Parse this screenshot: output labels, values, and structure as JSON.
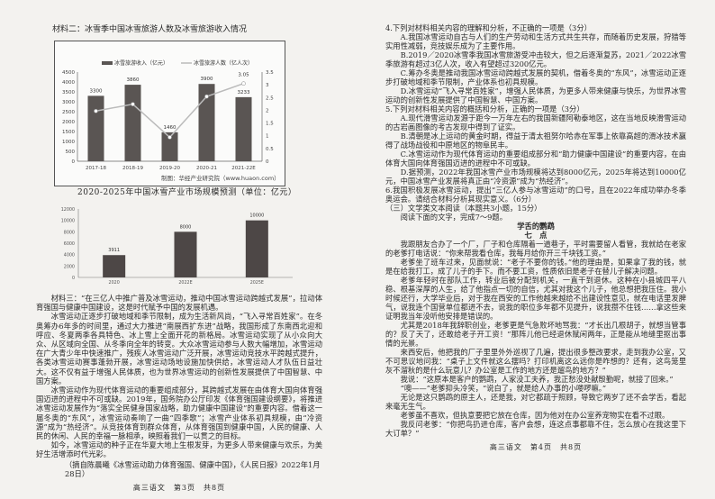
{
  "left_page": {
    "material2_title": "材料二：冰雪季中国冰雪旅游人数及冰雪旅游收入情况",
    "chart2_title": "2020-2025年中国冰雪产业市场规模预测（单位：亿元）",
    "material3": [
      "材料三：“在三亿人中推广普及冰雪运动，推动中国冰雪运动跨越式发展”，拉动体育强国与健康中国建设，这是时代赋予中国的发展机遇。",
      "冰雪运动正逐步打破地域和季节限制，成为生活新风尚，“飞入寻常百姓家”。在冬奥筹办6年多的时间里，通过大力推进“南展西扩东进”战略，我国形成了东南西北迎和呼应、冬夏两季各具特色、冰上雪上全面开花的新格局。冰雪运动实现了从小众向大众、从区域向全国、从冬季向全年的转变。大众冰雪运动参与人数大幅增加，冰雪运动在广大青少年中快速推广，残疾人冰雪运动广泛开展，冰雪运动竞技水平跨越式提升，各类冰雪运动赛事蓬勃开展，冰雪运动场地设施加快供给，冰雪运动人才队伍日益壮大。这不仅有益于增强人民体质，也为世界冰雪运动的创新性发展提供了中国智慧、中国方案。",
      "冰雪运动作为现代体育运动的重要组成部分，其跨越式发展在由体育大国向体育强国迈进的进程中不可或缺。2019年，国务院办公厅印发《体育强国建设纲要》，将推进冰雪运动发展作为“落实全民健身国家战略，助力健康中国建设”的重要内容。借着这一届冬奥的“东风”，冰雪运动奏响了一曲“四季歌”；冰雪产业体系初具规模，由“冷资源”成为“热经济”。从竞技体育到群众体育，从体育强国到健康中国，人民的健康、人民的休闲、人民的幸福一脉相承，映照着我们一以贯之的目标。",
      "如今，冰雪运动的种子正在华夏大地上生根发芽，为更多人带来健康与欢乐，为美好生活增添时代光彩。"
    ],
    "source": "（摘自陈晨曦《冰雪运动助力体育强国、健康中国》，《人民日报》2022年1月28日）",
    "footer": "高三语文　第3页　共8页"
  },
  "right_page": {
    "paragraphs": [
      {
        "kind": "q",
        "text": "4.下列对材料相关内容的理解和分析，不正确的一项是（3分）"
      },
      {
        "kind": "p",
        "text": "A.我国冰雪运动自古与人们的生产劳动和生活方式共生共存，而随着历史发展，狩猎等实用性减弱，竞技娱乐成为了主要作用。"
      },
      {
        "kind": "p",
        "text": "B.2019／2020冰雪季我国冰雪旅游受冲击较大，但之后逐渐复苏，2021／2022冰雪季旅游有超过3亿人次，收入有望超过3200亿元。"
      },
      {
        "kind": "p",
        "text": "C.筹办冬奥是推动我国冰雪运动跨越式发展的契机，借着冬奥的“东风”，冰雪运动正逐步打破地域和季节限制，产业体系也初具规模。"
      },
      {
        "kind": "p",
        "text": "D.冰雪运动“飞入寻常百姓家”，增强人民体质，为更多人带来健康与快乐，为世界冰雪运动的创新性发展提供了中国智慧、中国方案。"
      },
      {
        "kind": "q",
        "text": "5.下列对材料相关内容的概括和分析，正确的一项是（3分）"
      },
      {
        "kind": "p",
        "text": "A.现代滑雪运动发源于距今一万年左右的我国新疆阿勒泰地区，这在当地反映滑雪运动的古岩画图像的考古发现中得到了证实。"
      },
      {
        "kind": "p",
        "text": "B.清朝是冰上运动的黄金时期，得益于清太祖努尔哈赤在军事上依靠高超的滑冰技术赢得了战场战役和中原地区的物阜民丰。"
      },
      {
        "kind": "p",
        "text": "C.冰雪运动作为现代体育运动的重要组成部分和“助力健康中国建设”的重要内容，在由体育大国向体育强国迈进的进程中不可或缺。"
      },
      {
        "kind": "p",
        "text": "D.据预测，2022年我国冰雪产业市场规模将达到8000亿元，2025年将达到10000亿元，中国冰雪产业发展将真正由“冷资源”成为“热经济”。"
      },
      {
        "kind": "q",
        "text": "6.我国积极发展冰雪运动，提出“三亿人参与冰雪运动”的口号，且在2022年成功举办冬季奥运会。请结合材料分析其现实意义。（6分）"
      },
      {
        "kind": "q",
        "text": "（三）文学类文本阅读（本题共3小题，15分）"
      },
      {
        "kind": "p",
        "text": "阅读下面的文字，完成7～9题。"
      },
      {
        "kind": "ttl",
        "text": "学舌的鹦鹉"
      },
      {
        "kind": "ttl",
        "text": "七　点"
      },
      {
        "kind": "p",
        "text": "我跟朋友合办了一个厂，厂子和仓库隔着一道巷子，平时需要留人看管，我就给在老家的老爹打电话说：“你来帮我看仓库，我每月给你开三千块钱工资。”"
      },
      {
        "kind": "p",
        "text": "老爹坐了班车过来，见面就说：“老子不要你的钱。”他的理由是，如果拿了我的钱，就是在给我打工，成了儿子的手下。而不要工资，性质依旧是老子在替儿子解决问题。"
      },
      {
        "kind": "p",
        "text": "老爹年轻时在部队工作，转业后被分配到机关，一直干到退休。这种在小县城四平八稳、根基深厚的人生，给了他指点一切的自信，尤其对我这个儿子，他总想把我压住。我小时候还行，大学毕业后，对于我在西安的工作他越来越给不出建设性意见，就在电话里发脾气，说我连个国营单位都进不去，说我的职位多年都不见提升，说我攒不住钱……拿这些来证明我当年没听他安排是错误的。"
      },
      {
        "kind": "p",
        "text": "尤其是2018年我辞职创业，老爹更是气急败坏地骂我：“才长出几根胡子，就想当管事的？反了天了，还敢给老子开工资！”那阵儿他已经退休赋闲两年，正是能从地缝里抠出事情的光景。"
      },
      {
        "kind": "p",
        "text": "来西安后，他把我的厂子里里外外巡视了几遍，提出很多整改要求，走到我办公室，又不可思议地问我：“桌子上文件就这么摆吗？打印机离这么远你是咋想的？还有，这鸟笼里灰不溜秋的是什么玩意儿？办公室是工作的地方还是遛鸟的地方？”"
      },
      {
        "kind": "p",
        "text": "我说：“这原本是客户的鹦鹉，人家没工夫养，我正愁没处献殷勤呢，就接了回来。”"
      },
      {
        "kind": "p",
        "text": "“噢——”老爹抑头冷笑，“说白了，就是给人办事的小喽啰嘛。”"
      },
      {
        "kind": "p",
        "text": "无论是这只鹦鹉的原主人，还是我，对它都疏于照顾，导致它两岁了还不会学舌，看起来毫无生气。"
      },
      {
        "kind": "p",
        "text": "老爹虽不喜欢，但执意要把它放在仓库，因为他对在办公室养宠物实在看不过眼。"
      },
      {
        "kind": "p",
        "text": "我反问老爹：“你把鸟扔进仓库，客户会想，连这点事都靠不住，怎么放心在我这里下大订单？”"
      }
    ],
    "footer": "高三语文　第4页　共8页"
  },
  "chart_data": [
    {
      "type": "bar+line",
      "categories": [
        "2017-18",
        "2018-19",
        "2019-20",
        "2020-21",
        "2021-22E"
      ],
      "series": [
        {
          "name": "冰雪旅游收入（亿元）",
          "type": "bar",
          "axis": "left",
          "values": [
            3300,
            3860,
            1460,
            3900,
            3233
          ],
          "labels": [
            "3300",
            "3860",
            "1460",
            "3900",
            "3233"
          ]
        },
        {
          "name": "冰雪旅游人数（亿人次）",
          "type": "line",
          "axis": "right",
          "values": [
            1.97,
            2.24,
            0.94,
            2.54,
            3.05
          ],
          "labels": [
            "",
            "",
            "",
            "",
            "3.05"
          ]
        }
      ],
      "ylim_left": [
        0,
        4500
      ],
      "yticks_left": [
        "0",
        "500",
        "1000",
        "1500",
        "2000",
        "2500",
        "3000",
        "3500",
        "4000",
        "4500"
      ],
      "ylim_right": [
        0,
        3.5
      ],
      "yticks_right": [
        "0",
        "0.5",
        "1",
        "1.5",
        "2",
        "2.5",
        "3",
        "3.5"
      ],
      "legend": "top",
      "source_note": "制图：华经产业研究院（www.huaon.com）",
      "bar_color": "#5a5553",
      "line_color": "#bbbbbb"
    },
    {
      "type": "bar",
      "title": "2020-2025年中国冰雪产业市场规模预测（单位：亿元）",
      "categories": [
        "2020",
        "2022E",
        "2025E"
      ],
      "values": [
        3911,
        8000,
        10000
      ],
      "labels": [
        "3911",
        "8000",
        "10000"
      ],
      "ylim": [
        0,
        12000
      ],
      "yticks": [
        "0",
        "2000",
        "4000",
        "6000",
        "8000",
        "10000",
        "12000"
      ],
      "bar_color": "#4d4746"
    }
  ]
}
